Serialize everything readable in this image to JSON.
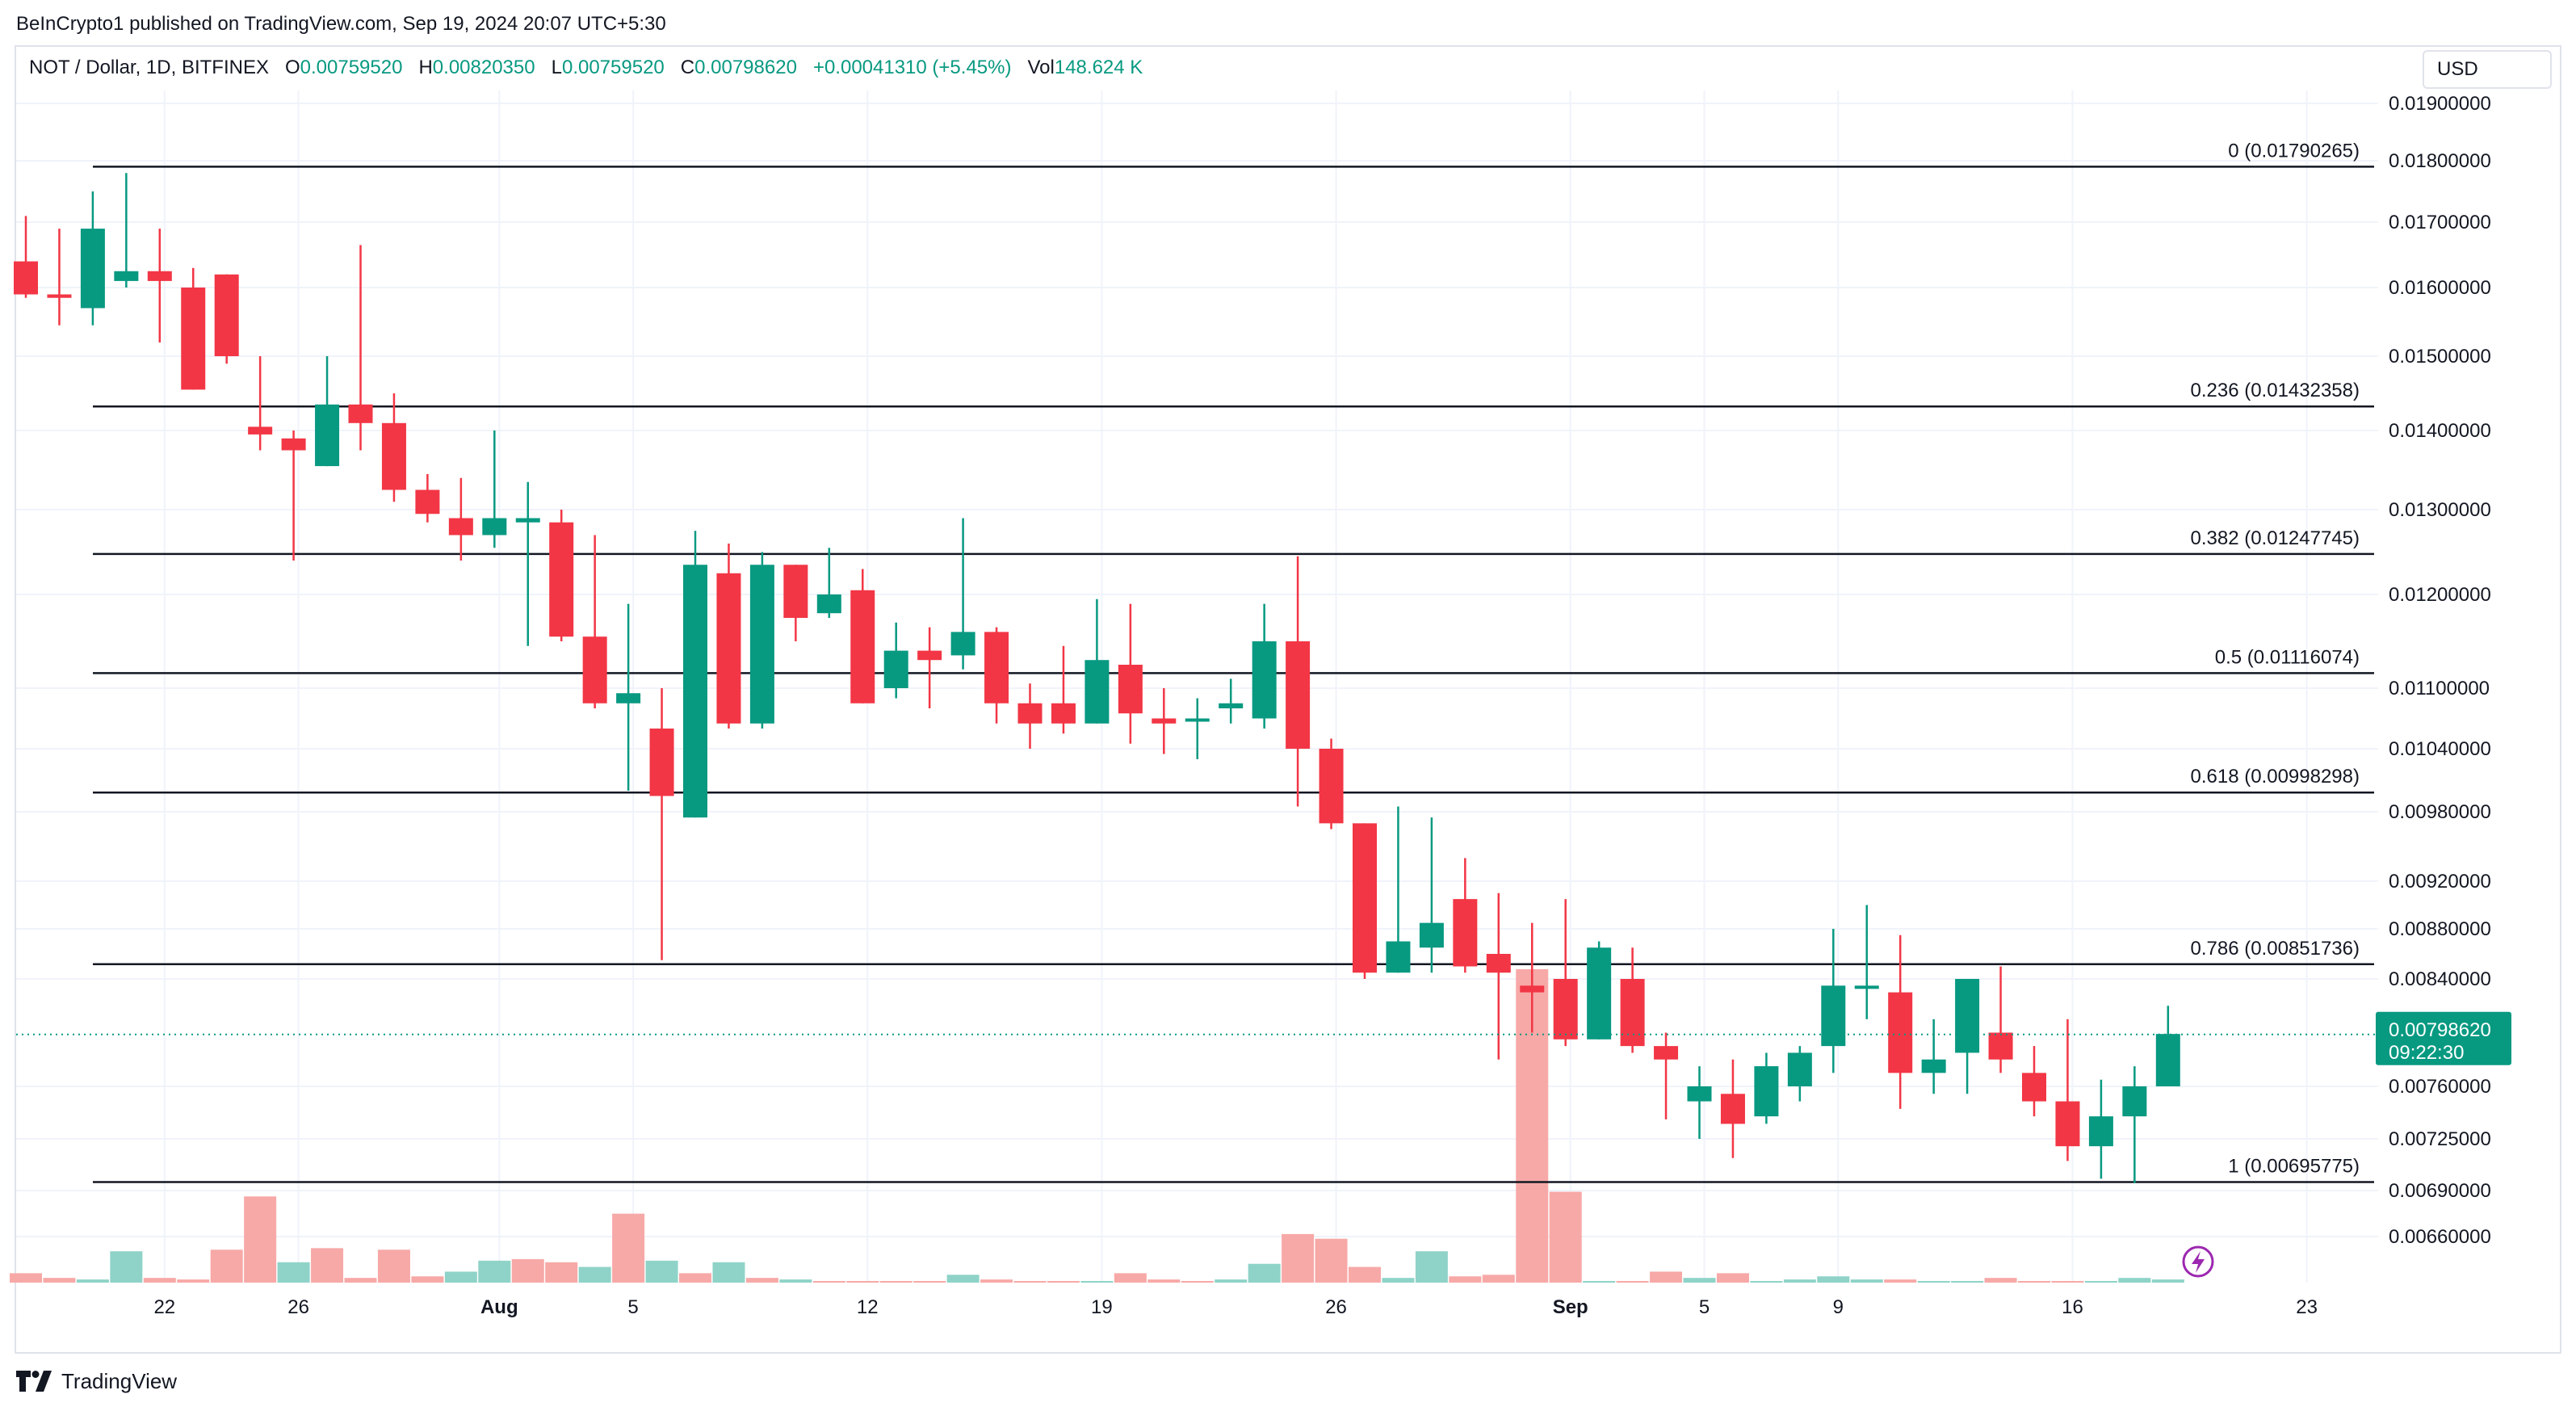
{
  "header": {
    "published_by": "BeInCrypto1 published on TradingView.com, Sep 19, 2024 20:07 UTC+5:30"
  },
  "legend": {
    "symbol": "NOT / Dollar, 1D, BITFINEX",
    "o_label": "O",
    "o_value": "0.00759520",
    "h_label": "H",
    "h_value": "0.00820350",
    "l_label": "L",
    "l_value": "0.00759520",
    "c_label": "C",
    "c_value": "0.00798620",
    "change": "+0.00041310 (+5.45%)",
    "vol_label": "Vol",
    "vol_value": "148.624 K"
  },
  "currency": "USD",
  "footer": {
    "brand": "TradingView"
  },
  "colors": {
    "up": "#089981",
    "down": "#f23645",
    "up_vol": "#8fd3c8",
    "down_vol": "#f7a9a7",
    "grid": "#f0f3fa",
    "fib": "#131722",
    "text": "#131722"
  },
  "chart_data": {
    "type": "candlestick",
    "title": "NOT / Dollar, 1D, BITFINEX",
    "y_axis_ticks": [
      "0.01900000",
      "0.01800000",
      "0.01700000",
      "0.01600000",
      "0.01500000",
      "0.01400000",
      "0.01300000",
      "0.01200000",
      "0.01100000",
      "0.01040000",
      "0.00980000",
      "0.00920000",
      "0.00880000",
      "0.00840000",
      "0.00760000",
      "0.00725000",
      "0.00690000",
      "0.00660000"
    ],
    "x_axis_ticks": [
      "22",
      "26",
      "Aug",
      "5",
      "12",
      "19",
      "26",
      "Sep",
      "5",
      "9",
      "16",
      "23"
    ],
    "last_price": "0.00798620",
    "countdown": "09:22:30",
    "fib_levels": [
      {
        "label": "0 (0.01790265)",
        "value": 0.01790265
      },
      {
        "label": "0.236 (0.01432358)",
        "value": 0.01432358
      },
      {
        "label": "0.382 (0.01247745)",
        "value": 0.01247745
      },
      {
        "label": "0.5 (0.01116074)",
        "value": 0.01116074
      },
      {
        "label": "0.618 (0.00998298)",
        "value": 0.00998298
      },
      {
        "label": "0.786 (0.00851736)",
        "value": 0.00851736
      },
      {
        "label": "1 (0.00695775)",
        "value": 0.00695775
      }
    ],
    "candles": [
      {
        "date": "Jul 18",
        "o": 0.0164,
        "h": 0.0171,
        "l": 0.01585,
        "c": 0.0159
      },
      {
        "date": "Jul 19",
        "o": 0.0159,
        "h": 0.0169,
        "l": 0.01545,
        "c": 0.01585
      },
      {
        "date": "Jul 20",
        "o": 0.0157,
        "h": 0.0175,
        "l": 0.01545,
        "c": 0.0169
      },
      {
        "date": "Jul 21",
        "o": 0.0161,
        "h": 0.0178,
        "l": 0.016,
        "c": 0.01625
      },
      {
        "date": "Jul 22",
        "o": 0.01625,
        "h": 0.0169,
        "l": 0.0152,
        "c": 0.0161
      },
      {
        "date": "Jul 23",
        "o": 0.016,
        "h": 0.0163,
        "l": 0.01455,
        "c": 0.01455
      },
      {
        "date": "Jul 24",
        "o": 0.0162,
        "h": 0.0162,
        "l": 0.0149,
        "c": 0.015
      },
      {
        "date": "Jul 25",
        "o": 0.01405,
        "h": 0.015,
        "l": 0.01375,
        "c": 0.01395
      },
      {
        "date": "Jul 26",
        "o": 0.0139,
        "h": 0.014,
        "l": 0.0124,
        "c": 0.01375
      },
      {
        "date": "Jul 27",
        "o": 0.01355,
        "h": 0.015,
        "l": 0.01355,
        "c": 0.01435
      },
      {
        "date": "Jul 28",
        "o": 0.01435,
        "h": 0.01665,
        "l": 0.01375,
        "c": 0.0141
      },
      {
        "date": "Jul 29",
        "o": 0.0141,
        "h": 0.0145,
        "l": 0.0131,
        "c": 0.01325
      },
      {
        "date": "Jul 30",
        "o": 0.01325,
        "h": 0.01345,
        "l": 0.01285,
        "c": 0.01295
      },
      {
        "date": "Jul 31",
        "o": 0.0129,
        "h": 0.0134,
        "l": 0.0124,
        "c": 0.0127
      },
      {
        "date": "Aug 1",
        "o": 0.0127,
        "h": 0.014,
        "l": 0.01255,
        "c": 0.0129
      },
      {
        "date": "Aug 2",
        "o": 0.01285,
        "h": 0.01335,
        "l": 0.01145,
        "c": 0.0129
      },
      {
        "date": "Aug 3",
        "o": 0.01285,
        "h": 0.013,
        "l": 0.0115,
        "c": 0.01155
      },
      {
        "date": "Aug 4",
        "o": 0.01155,
        "h": 0.0127,
        "l": 0.0108,
        "c": 0.01085
      },
      {
        "date": "Aug 5",
        "o": 0.01085,
        "h": 0.0119,
        "l": 0.01,
        "c": 0.01095
      },
      {
        "date": "Aug 6",
        "o": 0.0106,
        "h": 0.011,
        "l": 0.00855,
        "c": 0.00995
      },
      {
        "date": "Aug 7",
        "o": 0.00975,
        "h": 0.01275,
        "l": 0.00975,
        "c": 0.01235
      },
      {
        "date": "Aug 8",
        "o": 0.01225,
        "h": 0.0126,
        "l": 0.0106,
        "c": 0.01065
      },
      {
        "date": "Aug 9",
        "o": 0.01065,
        "h": 0.0125,
        "l": 0.0106,
        "c": 0.01235
      },
      {
        "date": "Aug 10",
        "o": 0.01235,
        "h": 0.01235,
        "l": 0.0115,
        "c": 0.01175
      },
      {
        "date": "Aug 11",
        "o": 0.0118,
        "h": 0.01255,
        "l": 0.01175,
        "c": 0.012
      },
      {
        "date": "Aug 12",
        "o": 0.01205,
        "h": 0.0123,
        "l": 0.01085,
        "c": 0.01085
      },
      {
        "date": "Aug 13",
        "o": 0.011,
        "h": 0.0117,
        "l": 0.0109,
        "c": 0.0114
      },
      {
        "date": "Aug 14",
        "o": 0.0114,
        "h": 0.01165,
        "l": 0.0108,
        "c": 0.0113
      },
      {
        "date": "Aug 15",
        "o": 0.01135,
        "h": 0.0129,
        "l": 0.0112,
        "c": 0.0116
      },
      {
        "date": "Aug 16",
        "o": 0.0116,
        "h": 0.01165,
        "l": 0.01065,
        "c": 0.01085
      },
      {
        "date": "Aug 17",
        "o": 0.01085,
        "h": 0.01105,
        "l": 0.0104,
        "c": 0.01065
      },
      {
        "date": "Aug 18",
        "o": 0.01085,
        "h": 0.01145,
        "l": 0.01055,
        "c": 0.01065
      },
      {
        "date": "Aug 19",
        "o": 0.01065,
        "h": 0.01195,
        "l": 0.01065,
        "c": 0.0113
      },
      {
        "date": "Aug 20",
        "o": 0.01125,
        "h": 0.0119,
        "l": 0.01045,
        "c": 0.01075
      },
      {
        "date": "Aug 21",
        "o": 0.0107,
        "h": 0.011,
        "l": 0.01035,
        "c": 0.01065
      },
      {
        "date": "Aug 22",
        "o": 0.0107,
        "h": 0.0109,
        "l": 0.0103,
        "c": 0.0107
      },
      {
        "date": "Aug 23",
        "o": 0.0108,
        "h": 0.0111,
        "l": 0.01065,
        "c": 0.01085
      },
      {
        "date": "Aug 24",
        "o": 0.0107,
        "h": 0.0119,
        "l": 0.0106,
        "c": 0.0115
      },
      {
        "date": "Aug 25",
        "o": 0.0115,
        "h": 0.01245,
        "l": 0.00985,
        "c": 0.0104
      },
      {
        "date": "Aug 26",
        "o": 0.0104,
        "h": 0.0105,
        "l": 0.00965,
        "c": 0.0097
      },
      {
        "date": "Aug 27",
        "o": 0.0097,
        "h": 0.0097,
        "l": 0.0084,
        "c": 0.00845
      },
      {
        "date": "Aug 28",
        "o": 0.00845,
        "h": 0.00985,
        "l": 0.00845,
        "c": 0.0087
      },
      {
        "date": "Aug 29",
        "o": 0.00865,
        "h": 0.00975,
        "l": 0.00845,
        "c": 0.00885
      },
      {
        "date": "Aug 30",
        "o": 0.00905,
        "h": 0.0094,
        "l": 0.00845,
        "c": 0.0085
      },
      {
        "date": "Aug 31",
        "o": 0.0086,
        "h": 0.0091,
        "l": 0.0078,
        "c": 0.00845
      },
      {
        "date": "Sep 1",
        "o": 0.00835,
        "h": 0.00885,
        "l": 0.008,
        "c": 0.0083
      },
      {
        "date": "Sep 2",
        "o": 0.0084,
        "h": 0.00905,
        "l": 0.0079,
        "c": 0.00795
      },
      {
        "date": "Sep 3",
        "o": 0.00795,
        "h": 0.0087,
        "l": 0.00795,
        "c": 0.00865
      },
      {
        "date": "Sep 4",
        "o": 0.0084,
        "h": 0.00865,
        "l": 0.00785,
        "c": 0.0079
      },
      {
        "date": "Sep 5",
        "o": 0.0079,
        "h": 0.008,
        "l": 0.00738,
        "c": 0.0078
      },
      {
        "date": "Sep 6",
        "o": 0.0075,
        "h": 0.00775,
        "l": 0.00725,
        "c": 0.0076
      },
      {
        "date": "Sep 7",
        "o": 0.00755,
        "h": 0.0078,
        "l": 0.00712,
        "c": 0.00735
      },
      {
        "date": "Sep 8",
        "o": 0.0074,
        "h": 0.00785,
        "l": 0.00735,
        "c": 0.00775
      },
      {
        "date": "Sep 9",
        "o": 0.0076,
        "h": 0.0079,
        "l": 0.0075,
        "c": 0.00785
      },
      {
        "date": "Sep 10",
        "o": 0.0079,
        "h": 0.0088,
        "l": 0.0077,
        "c": 0.00835
      },
      {
        "date": "Sep 11",
        "o": 0.00835,
        "h": 0.009,
        "l": 0.0081,
        "c": 0.00835
      },
      {
        "date": "Sep 12",
        "o": 0.0083,
        "h": 0.00875,
        "l": 0.00745,
        "c": 0.0077
      },
      {
        "date": "Sep 13",
        "o": 0.0077,
        "h": 0.0081,
        "l": 0.00755,
        "c": 0.0078
      },
      {
        "date": "Sep 14",
        "o": 0.00785,
        "h": 0.00835,
        "l": 0.00755,
        "c": 0.0084
      },
      {
        "date": "Sep 15",
        "o": 0.008,
        "h": 0.0085,
        "l": 0.0077,
        "c": 0.0078
      },
      {
        "date": "Sep 16",
        "o": 0.0077,
        "h": 0.0079,
        "l": 0.0074,
        "c": 0.0075
      },
      {
        "date": "Sep 17",
        "o": 0.0075,
        "h": 0.0081,
        "l": 0.0071,
        "c": 0.0072
      },
      {
        "date": "Sep 18",
        "o": 0.0072,
        "h": 0.00765,
        "l": 0.00698,
        "c": 0.0074
      },
      {
        "date": "Sep 19",
        "o": 0.0074,
        "h": 0.00775,
        "l": 0.00695,
        "c": 0.0076
      },
      {
        "date": "Sep 20",
        "o": 0.0076,
        "h": 0.0082,
        "l": 0.0076,
        "c": 0.00799
      }
    ],
    "volume": [
      {
        "date": "Jul 18",
        "v": 6,
        "up": false
      },
      {
        "date": "Jul 19",
        "v": 3,
        "up": false
      },
      {
        "date": "Jul 20",
        "v": 2,
        "up": true
      },
      {
        "date": "Jul 21",
        "v": 20,
        "up": true
      },
      {
        "date": "Jul 22",
        "v": 3,
        "up": false
      },
      {
        "date": "Jul 23",
        "v": 2,
        "up": false
      },
      {
        "date": "Jul 24",
        "v": 21,
        "up": false
      },
      {
        "date": "Jul 25",
        "v": 55,
        "up": false
      },
      {
        "date": "Jul 26",
        "v": 13,
        "up": true
      },
      {
        "date": "Jul 27",
        "v": 22,
        "up": false
      },
      {
        "date": "Jul 28",
        "v": 3,
        "up": false
      },
      {
        "date": "Jul 29",
        "v": 21,
        "up": false
      },
      {
        "date": "Jul 30",
        "v": 4,
        "up": false
      },
      {
        "date": "Jul 31",
        "v": 7,
        "up": true
      },
      {
        "date": "Aug 1",
        "v": 14,
        "up": true
      },
      {
        "date": "Aug 2",
        "v": 15,
        "up": false
      },
      {
        "date": "Aug 3",
        "v": 13,
        "up": false
      },
      {
        "date": "Aug 4",
        "v": 10,
        "up": true
      },
      {
        "date": "Aug 5",
        "v": 44,
        "up": false
      },
      {
        "date": "Aug 6",
        "v": 14,
        "up": true
      },
      {
        "date": "Aug 7",
        "v": 6,
        "up": false
      },
      {
        "date": "Aug 8",
        "v": 13,
        "up": true
      },
      {
        "date": "Aug 9",
        "v": 3,
        "up": false
      },
      {
        "date": "Aug 10",
        "v": 2,
        "up": true
      },
      {
        "date": "Aug 11",
        "v": 1,
        "up": false
      },
      {
        "date": "Aug 12",
        "v": 1,
        "up": false
      },
      {
        "date": "Aug 13",
        "v": 1,
        "up": false
      },
      {
        "date": "Aug 14",
        "v": 1,
        "up": false
      },
      {
        "date": "Aug 15",
        "v": 5,
        "up": true
      },
      {
        "date": "Aug 16",
        "v": 2,
        "up": false
      },
      {
        "date": "Aug 17",
        "v": 1,
        "up": false
      },
      {
        "date": "Aug 18",
        "v": 1,
        "up": false
      },
      {
        "date": "Aug 19",
        "v": 1,
        "up": true
      },
      {
        "date": "Aug 20",
        "v": 6,
        "up": false
      },
      {
        "date": "Aug 21",
        "v": 2,
        "up": false
      },
      {
        "date": "Aug 22",
        "v": 1,
        "up": false
      },
      {
        "date": "Aug 23",
        "v": 2,
        "up": true
      },
      {
        "date": "Aug 24",
        "v": 12,
        "up": true
      },
      {
        "date": "Aug 25",
        "v": 31,
        "up": false
      },
      {
        "date": "Aug 26",
        "v": 28,
        "up": false
      },
      {
        "date": "Aug 27",
        "v": 10,
        "up": false
      },
      {
        "date": "Aug 28",
        "v": 3,
        "up": true
      },
      {
        "date": "Aug 29",
        "v": 20,
        "up": true
      },
      {
        "date": "Aug 30",
        "v": 4,
        "up": false
      },
      {
        "date": "Aug 31",
        "v": 5,
        "up": false
      },
      {
        "date": "Sep 1",
        "v": 200,
        "up": false
      },
      {
        "date": "Sep 2",
        "v": 58,
        "up": false
      },
      {
        "date": "Sep 3",
        "v": 1,
        "up": true
      },
      {
        "date": "Sep 4",
        "v": 1,
        "up": false
      },
      {
        "date": "Sep 5",
        "v": 7,
        "up": false
      },
      {
        "date": "Sep 6",
        "v": 3,
        "up": true
      },
      {
        "date": "Sep 7",
        "v": 6,
        "up": false
      },
      {
        "date": "Sep 8",
        "v": 1,
        "up": true
      },
      {
        "date": "Sep 9",
        "v": 2,
        "up": true
      },
      {
        "date": "Sep 10",
        "v": 4,
        "up": true
      },
      {
        "date": "Sep 11",
        "v": 2,
        "up": true
      },
      {
        "date": "Sep 12",
        "v": 2,
        "up": false
      },
      {
        "date": "Sep 13",
        "v": 1,
        "up": true
      },
      {
        "date": "Sep 14",
        "v": 1,
        "up": true
      },
      {
        "date": "Sep 15",
        "v": 3,
        "up": false
      },
      {
        "date": "Sep 16",
        "v": 1,
        "up": false
      },
      {
        "date": "Sep 17",
        "v": 1,
        "up": false
      },
      {
        "date": "Sep 18",
        "v": 1,
        "up": true
      },
      {
        "date": "Sep 19",
        "v": 3,
        "up": true
      },
      {
        "date": "Sep 20",
        "v": 2,
        "up": true
      }
    ]
  }
}
